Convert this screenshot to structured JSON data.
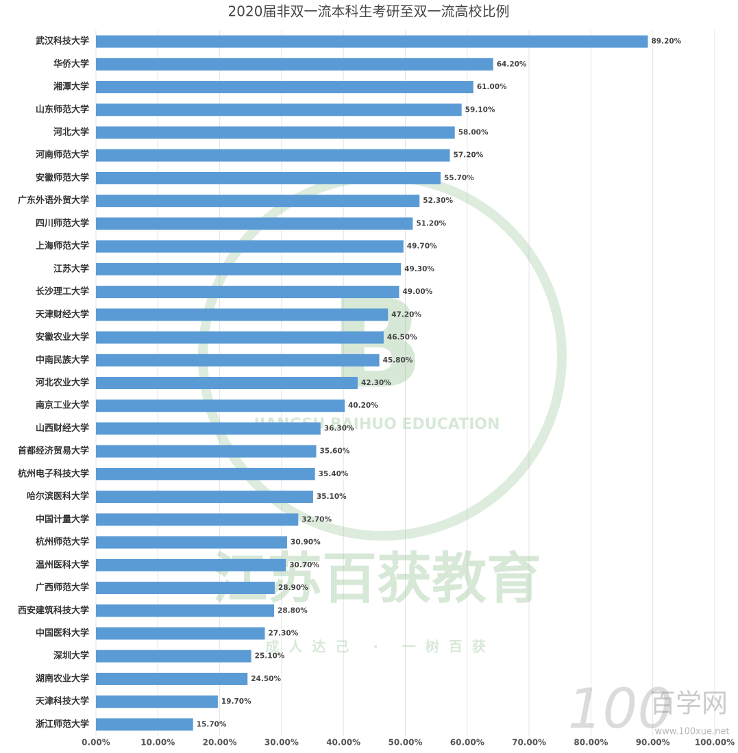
{
  "chart_data": {
    "type": "barh",
    "title": "2020届非双一流本科生考研至双一流高校比例",
    "categories": [
      "武汉科技大学",
      "华侨大学",
      "湘潭大学",
      "山东师范大学",
      "河北大学",
      "河南师范大学",
      "安徽师范大学",
      "广东外语外贸大学",
      "四川师范大学",
      "上海师范大学",
      "江苏大学",
      "长沙理工大学",
      "天津财经大学",
      "安徽农业大学",
      "中南民族大学",
      "河北农业大学",
      "南京工业大学",
      "山西财经大学",
      "首都经济贸易大学",
      "杭州电子科技大学",
      "哈尔滨医科大学",
      "中国计量大学",
      "杭州师范大学",
      "温州医科大学",
      "广西师范大学",
      "西安建筑科技大学",
      "中国医科大学",
      "深圳大学",
      "湖南农业大学",
      "天津科技大学",
      "浙江师范大学"
    ],
    "values": [
      89.2,
      64.2,
      61.0,
      59.1,
      58.0,
      57.2,
      55.7,
      52.3,
      51.2,
      49.7,
      49.3,
      49.0,
      47.2,
      46.5,
      45.8,
      42.3,
      40.2,
      36.3,
      35.6,
      35.4,
      35.1,
      32.7,
      30.9,
      30.7,
      28.9,
      28.8,
      27.3,
      25.1,
      24.5,
      19.7,
      15.7
    ],
    "value_labels": [
      "89.20%",
      "64.20%",
      "61.00%",
      "59.10%",
      "58.00%",
      "57.20%",
      "55.70%",
      "52.30%",
      "51.20%",
      "49.70%",
      "49.30%",
      "49.00%",
      "47.20%",
      "46.50%",
      "45.80%",
      "42.30%",
      "40.20%",
      "36.30%",
      "35.60%",
      "35.40%",
      "35.10%",
      "32.70%",
      "30.90%",
      "30.70%",
      "28.90%",
      "28.80%",
      "27.30%",
      "25.10%",
      "24.50%",
      "19.70%",
      "15.70%"
    ],
    "color": "#5b9bd5",
    "xlim": [
      0,
      100
    ],
    "xticks": [
      {
        "value": 0,
        "label": "0.00%"
      },
      {
        "value": 10,
        "label": "10.00%"
      },
      {
        "value": 20,
        "label": "20.00%"
      },
      {
        "value": 30,
        "label": "30.00%"
      },
      {
        "value": 40,
        "label": "40.00%"
      },
      {
        "value": 50,
        "label": "50.00%"
      },
      {
        "value": 60,
        "label": "60.00%"
      },
      {
        "value": 70,
        "label": "70.00%"
      },
      {
        "value": 80,
        "label": "80.00%"
      },
      {
        "value": 90,
        "label": "90.00%"
      },
      {
        "value": 100,
        "label": "100.00%"
      }
    ],
    "grid": true,
    "annotations": [
      "江苏百获教育",
      "成人达己 · 一树百获",
      "JIANGSU BAIHUO EDUCATION",
      "百学网",
      "www.100xue.net"
    ]
  }
}
